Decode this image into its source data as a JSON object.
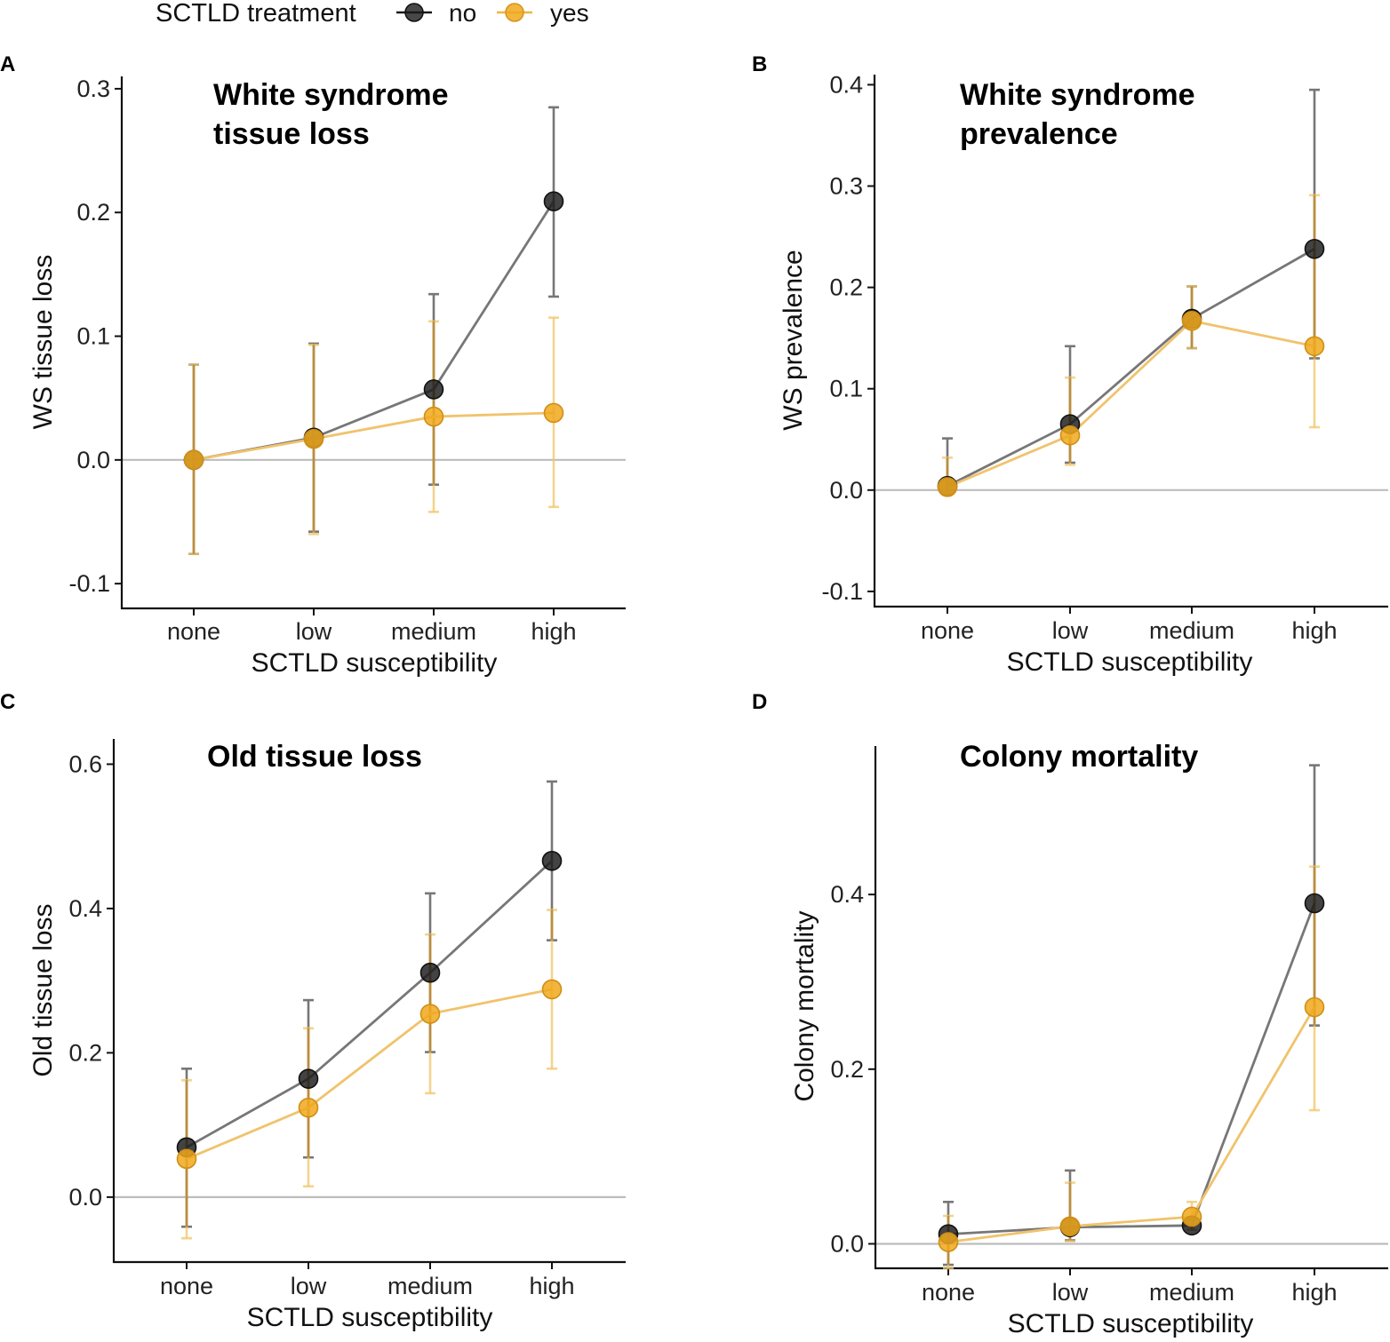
{
  "legend": {
    "title": "SCTLD treatment",
    "entries": [
      {
        "label": "no",
        "color": "#1a1a1a"
      },
      {
        "label": "yes",
        "color": "#f0a81c"
      }
    ]
  },
  "chart_data": [
    {
      "type": "line",
      "panel": "A",
      "title": "White syndrome tissue loss",
      "title_lines": [
        "White syndrome",
        "tissue loss"
      ],
      "xlabel": "SCTLD susceptibility",
      "ylabel": "WS tissue loss",
      "categories": [
        "none",
        "low",
        "medium",
        "high"
      ],
      "ylim": [
        -0.12,
        0.31
      ],
      "yticks": [
        -0.1,
        0.0,
        0.1,
        0.2,
        0.3
      ],
      "ytick_labels": [
        "-0.1",
        "0.0",
        "0.1",
        "0.2",
        "0.3"
      ],
      "series": [
        {
          "name": "no",
          "values": [
            0.0,
            0.018,
            0.057,
            0.209
          ],
          "lower": [
            -0.076,
            -0.058,
            -0.02,
            0.132
          ],
          "upper": [
            0.077,
            0.094,
            0.134,
            0.285
          ]
        },
        {
          "name": "yes",
          "values": [
            0.0,
            0.017,
            0.035,
            0.038
          ],
          "lower": [
            -0.076,
            -0.06,
            -0.042,
            -0.038
          ],
          "upper": [
            0.077,
            0.093,
            0.112,
            0.115
          ]
        }
      ]
    },
    {
      "type": "line",
      "panel": "B",
      "title": "White syndrome prevalence",
      "title_lines": [
        "White syndrome",
        " prevalence"
      ],
      "xlabel": "SCTLD susceptibility",
      "ylabel": "WS prevalence",
      "categories": [
        "none",
        "low",
        "medium",
        "high"
      ],
      "ylim": [
        -0.115,
        0.41
      ],
      "yticks": [
        -0.1,
        0.0,
        0.1,
        0.2,
        0.3,
        0.4
      ],
      "ytick_labels": [
        "-0.1",
        "0.0",
        "0.1",
        "0.2",
        "0.3",
        "0.4"
      ],
      "series": [
        {
          "name": "no",
          "values": [
            0.004,
            0.065,
            0.169,
            0.238
          ],
          "lower": [
            -0.004,
            0.027,
            0.14,
            0.13
          ],
          "upper": [
            0.051,
            0.142,
            0.201,
            0.395
          ]
        },
        {
          "name": "yes",
          "values": [
            0.003,
            0.054,
            0.167,
            0.142
          ],
          "lower": [
            -0.004,
            0.025,
            0.14,
            0.062
          ],
          "upper": [
            0.032,
            0.111,
            0.201,
            0.291
          ]
        }
      ]
    },
    {
      "type": "line",
      "panel": "C",
      "title": "Old tissue loss",
      "title_lines": [
        "Old tissue loss"
      ],
      "xlabel": "SCTLD susceptibility",
      "ylabel": "Old tissue loss",
      "categories": [
        "none",
        "low",
        "medium",
        "high"
      ],
      "ylim": [
        -0.09,
        0.635
      ],
      "yticks": [
        0.0,
        0.2,
        0.4,
        0.6
      ],
      "ytick_labels": [
        "0.0",
        "0.2",
        "0.4",
        "0.6"
      ],
      "series": [
        {
          "name": "no",
          "values": [
            0.069,
            0.164,
            0.311,
            0.466
          ],
          "lower": [
            -0.041,
            0.055,
            0.201,
            0.356
          ],
          "upper": [
            0.178,
            0.273,
            0.421,
            0.576
          ]
        },
        {
          "name": "yes",
          "values": [
            0.053,
            0.124,
            0.254,
            0.288
          ],
          "lower": [
            -0.057,
            0.015,
            0.144,
            0.178
          ],
          "upper": [
            0.162,
            0.234,
            0.364,
            0.398
          ]
        }
      ]
    },
    {
      "type": "line",
      "panel": "D",
      "title": "Colony mortality",
      "title_lines": [
        "Colony mortality"
      ],
      "xlabel": "SCTLD susceptibility",
      "ylabel": "Colony mortality",
      "categories": [
        "none",
        "low",
        "medium",
        "high"
      ],
      "ylim": [
        -0.028,
        0.57
      ],
      "yticks": [
        0.0,
        0.2,
        0.4
      ],
      "ytick_labels": [
        "0.0",
        "0.2",
        "0.4"
      ],
      "series": [
        {
          "name": "no",
          "values": [
            0.011,
            0.019,
            0.021,
            0.39
          ],
          "lower": [
            -0.024,
            0.004,
            0.016,
            0.25
          ],
          "upper": [
            0.048,
            0.084,
            0.028,
            0.548
          ]
        },
        {
          "name": "yes",
          "values": [
            0.002,
            0.02,
            0.031,
            0.271
          ],
          "lower": [
            -0.028,
            0.003,
            0.016,
            0.153
          ],
          "upper": [
            0.032,
            0.07,
            0.048,
            0.432
          ]
        }
      ]
    }
  ]
}
